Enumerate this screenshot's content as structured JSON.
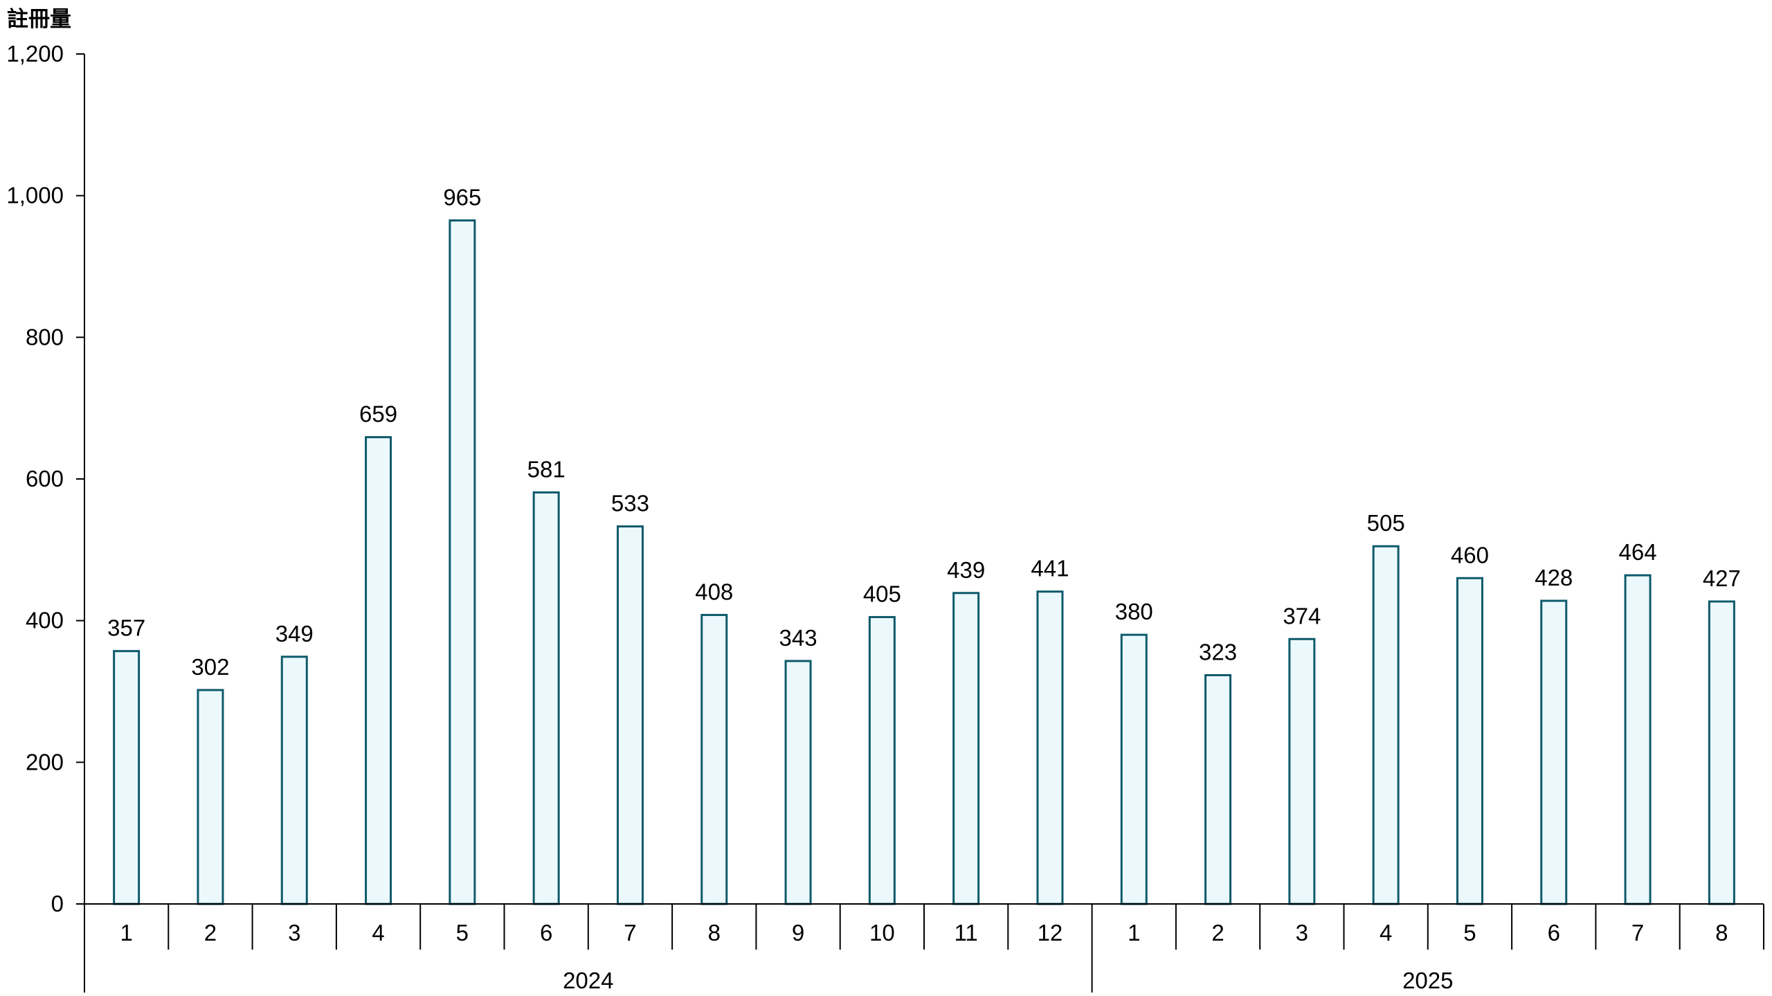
{
  "chart_data": {
    "type": "bar",
    "ylabel": "註冊量",
    "ylim": [
      0,
      1200
    ],
    "yticks": [
      0,
      200,
      400,
      600,
      800,
      1000,
      1200
    ],
    "ytick_labels": [
      "0",
      "200",
      "400",
      "600",
      "800",
      "1,000",
      "1,200"
    ],
    "categories": [
      "1",
      "2",
      "3",
      "4",
      "5",
      "6",
      "7",
      "8",
      "9",
      "10",
      "11",
      "12",
      "1",
      "2",
      "3",
      "4",
      "5",
      "6",
      "7",
      "8"
    ],
    "groups": [
      {
        "label": "2024",
        "count": 12
      },
      {
        "label": "2025",
        "count": 8
      }
    ],
    "values": [
      357,
      302,
      349,
      659,
      965,
      581,
      533,
      408,
      343,
      405,
      439,
      441,
      380,
      323,
      374,
      505,
      460,
      428,
      464,
      427
    ],
    "grid": false,
    "legend": "none",
    "colors": {
      "bar_fill": "#ebf9fc",
      "bar_stroke": "#0e5a6b",
      "axis": "#000000"
    }
  }
}
